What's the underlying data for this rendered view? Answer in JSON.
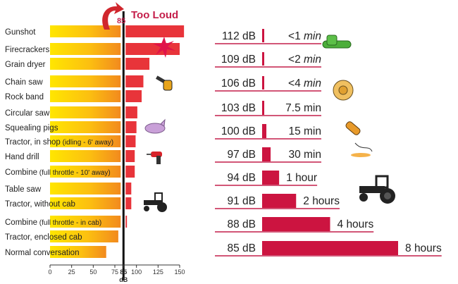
{
  "chart_data": [
    {
      "type": "bar",
      "orientation": "horizontal",
      "title": "Too Loud",
      "threshold_label": "85",
      "threshold": 85,
      "xlabel": "dB",
      "xlim": [
        0,
        150
      ],
      "xticks": [
        "0",
        "25",
        "50",
        "75",
        "85",
        "100",
        "125",
        "150"
      ],
      "categories": [
        {
          "name": "Gunshot",
          "note": ""
        },
        {
          "name": "Firecrackers",
          "note": ""
        },
        {
          "name": "Grain dryer",
          "note": ""
        },
        {
          "name": "Chain saw",
          "note": ""
        },
        {
          "name": "Rock band",
          "note": ""
        },
        {
          "name": "Circular saw",
          "note": ""
        },
        {
          "name": "Squealing pigs",
          "note": ""
        },
        {
          "name": "Tractor, in shop",
          "note": "(idling - 6' away)"
        },
        {
          "name": "Hand drill",
          "note": ""
        },
        {
          "name": "Combine",
          "note": "(full throttle - 10' away)"
        },
        {
          "name": "Table saw",
          "note": ""
        },
        {
          "name": "Tractor, without cab",
          "note": ""
        },
        {
          "name": "Combine",
          "note": "(full throttle - in cab)"
        },
        {
          "name": "Tractor, enclosed cab",
          "note": ""
        },
        {
          "name": "Normal conversation",
          "note": ""
        }
      ],
      "values": [
        155,
        150,
        115,
        108,
        106,
        101,
        100,
        99,
        98,
        98,
        94,
        94,
        89,
        79,
        65
      ],
      "colors": {
        "safe": "#f7a21b",
        "safe_light": "#ffe600",
        "too_loud": "#e8343a",
        "accent_text": "#c41e4a"
      }
    },
    {
      "type": "bar",
      "orientation": "horizontal",
      "categories": [
        "112 dB",
        "109 dB",
        "106 dB",
        "103 dB",
        "100 dB",
        "97 dB",
        "94 dB",
        "91 dB",
        "88 dB",
        "85 dB"
      ],
      "labels": [
        "<1 min",
        "<2 min",
        "<4 min",
        "7.5 min",
        "15 min",
        "30 min",
        "1 hour",
        "2 hours",
        "4 hours",
        "8 hours"
      ],
      "values_minutes": [
        1,
        2,
        4,
        7.5,
        15,
        30,
        60,
        120,
        240,
        480
      ],
      "colors": {
        "bar": "#cc1440",
        "underline": "#c41e4a"
      }
    }
  ],
  "icons": [
    "curved-arrow-icon",
    "firecracker-burst-icon",
    "chain-saw-icon",
    "pig-icon",
    "hand-drill-icon",
    "tractor-icon",
    "circular-saw-icon"
  ]
}
